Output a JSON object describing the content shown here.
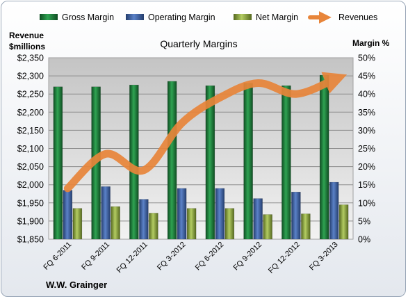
{
  "chart_data": {
    "type": "bar",
    "title": "Quarterly Margins",
    "left_axis_label": [
      "Revenue",
      "$millions"
    ],
    "right_axis_label": "Margin %",
    "footer": "W.W. Grainger",
    "categories": [
      "FQ 6-2011",
      "FQ 9-2011",
      "FQ 12-2011",
      "FQ 3-2012",
      "FQ 6-2012",
      "FQ 9-2012",
      "FQ 12-2012",
      "FQ 3-2013"
    ],
    "left_ticks": [
      "$1,850",
      "$1,900",
      "$1,950",
      "$2,000",
      "$2,050",
      "$2,100",
      "$2,150",
      "$2,200",
      "$2,250",
      "$2,300",
      "$2,350"
    ],
    "right_ticks": [
      "0%",
      "5%",
      "10%",
      "15%",
      "20%",
      "25%",
      "30%",
      "35%",
      "40%",
      "45%",
      "50%"
    ],
    "ylim_left": [
      1850,
      2350
    ],
    "ylim_right": [
      0,
      50
    ],
    "grid": true,
    "legend_position": "top",
    "series": [
      {
        "name": "Gross Margin",
        "axis": "right",
        "type": "bar",
        "color": "#1f7a3c",
        "values": [
          42.0,
          42.0,
          42.5,
          43.5,
          42.3,
          43.0,
          42.3,
          45.2
        ]
      },
      {
        "name": "Operating Margin",
        "axis": "right",
        "type": "bar",
        "color": "#3d64a6",
        "values": [
          13.5,
          14.5,
          11.0,
          14.0,
          14.0,
          11.2,
          13.0,
          15.7
        ]
      },
      {
        "name": "Net Margin",
        "axis": "right",
        "type": "bar",
        "color": "#8aa33f",
        "values": [
          8.5,
          9.0,
          7.2,
          8.5,
          8.5,
          6.8,
          7.0,
          9.5
        ]
      },
      {
        "name": "Revenues",
        "axis": "left",
        "type": "line",
        "color": "#e8853a",
        "values": [
          1990,
          2085,
          2040,
          2170,
          2240,
          2280,
          2250,
          2290
        ]
      }
    ]
  }
}
